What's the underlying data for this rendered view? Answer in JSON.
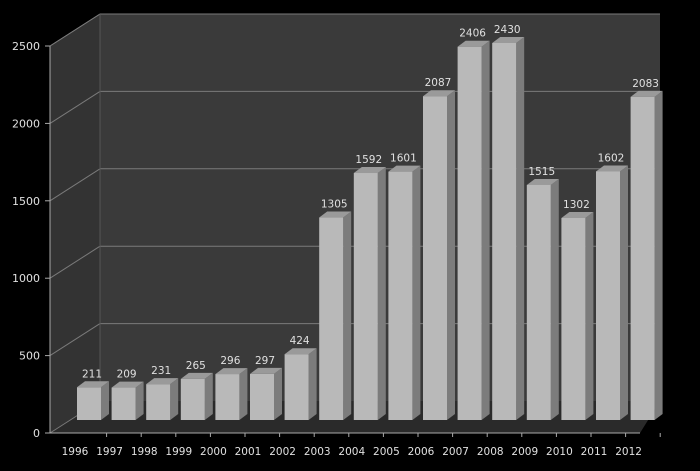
{
  "chart_data": {
    "type": "bar",
    "style": "3d-column",
    "title": "",
    "xlabel": "",
    "ylabel": "",
    "categories": [
      "1996",
      "1997",
      "1998",
      "1999",
      "2000",
      "2001",
      "2002",
      "2003",
      "2004",
      "2005",
      "2006",
      "2007",
      "2008",
      "2009",
      "2010",
      "2011",
      "2012"
    ],
    "values": [
      211,
      209,
      231,
      265,
      296,
      297,
      424,
      1305,
      1592,
      1601,
      2087,
      2406,
      2430,
      1515,
      1302,
      1602,
      2083
    ],
    "data_labels": [
      "211",
      "209",
      "231",
      "265",
      "296",
      "297",
      "424",
      "1305",
      "1592",
      "1601",
      "2087",
      "2406",
      "2430",
      "1515",
      "1302",
      "1602",
      "2083"
    ],
    "ylim": [
      0,
      2500
    ],
    "yticks": [
      0,
      500,
      1000,
      1500,
      2000,
      2500
    ],
    "ytick_labels": [
      "0",
      "500",
      "1000",
      "1500",
      "2000",
      "2500"
    ],
    "grid": true,
    "legend": null,
    "colors": {
      "background": "#000000",
      "wall": "#3a3a3a",
      "floor": "#2a2a2a",
      "gridline": "#7a7a7a",
      "bar_front": "#b9b9b9",
      "bar_side": "#7c7c7c",
      "bar_top": "#9a9a9a",
      "text": "#e0e0e0"
    }
  }
}
